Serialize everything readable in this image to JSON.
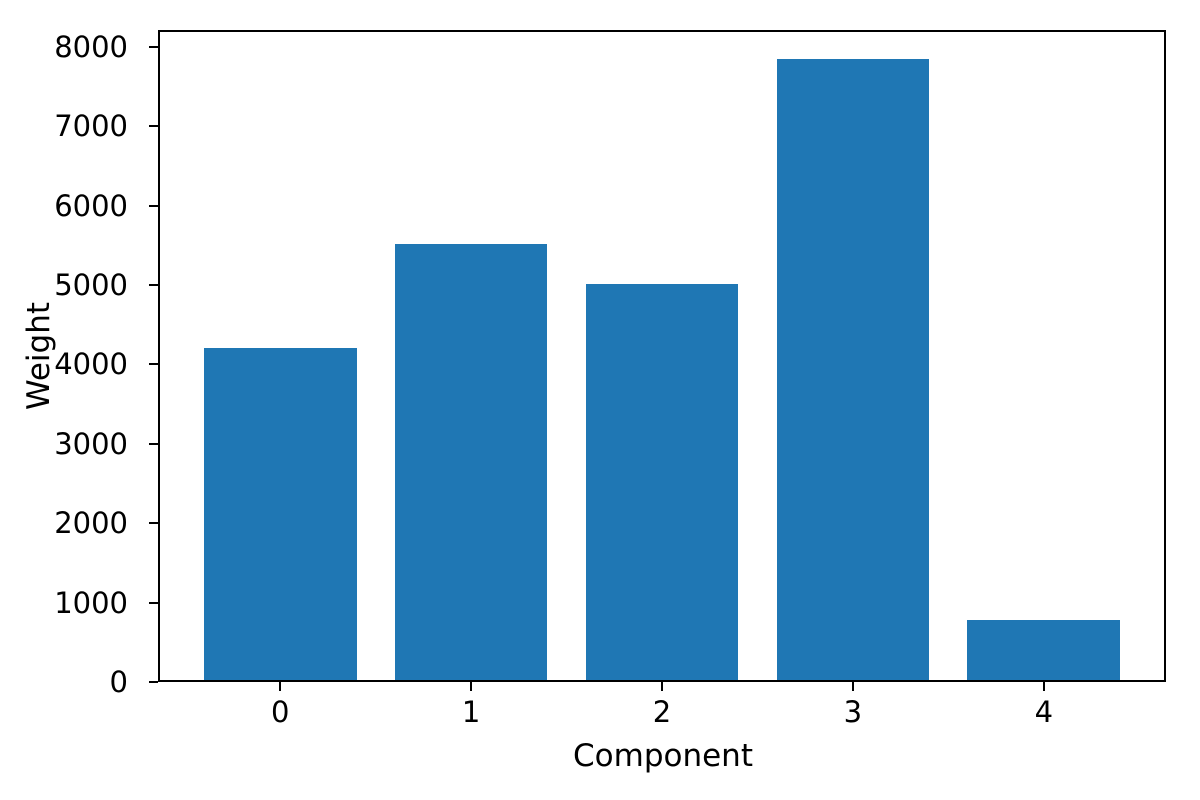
{
  "chart_data": {
    "type": "bar",
    "title": "",
    "xlabel": "Component",
    "ylabel": "Weight",
    "categories": [
      "0",
      "1",
      "2",
      "3",
      "4"
    ],
    "values": [
      4200,
      5520,
      5010,
      7840,
      780
    ],
    "yticks": [
      0,
      1000,
      2000,
      3000,
      4000,
      5000,
      6000,
      7000,
      8000
    ],
    "ylim": [
      0,
      8210
    ],
    "xlim": [
      -0.64,
      4.64
    ],
    "bar_width": 0.8,
    "bar_color": "#1f77b4",
    "spine_color": "#000000",
    "text_color": "#000000",
    "background_color": "#ffffff",
    "grid": false,
    "legend": "none"
  }
}
